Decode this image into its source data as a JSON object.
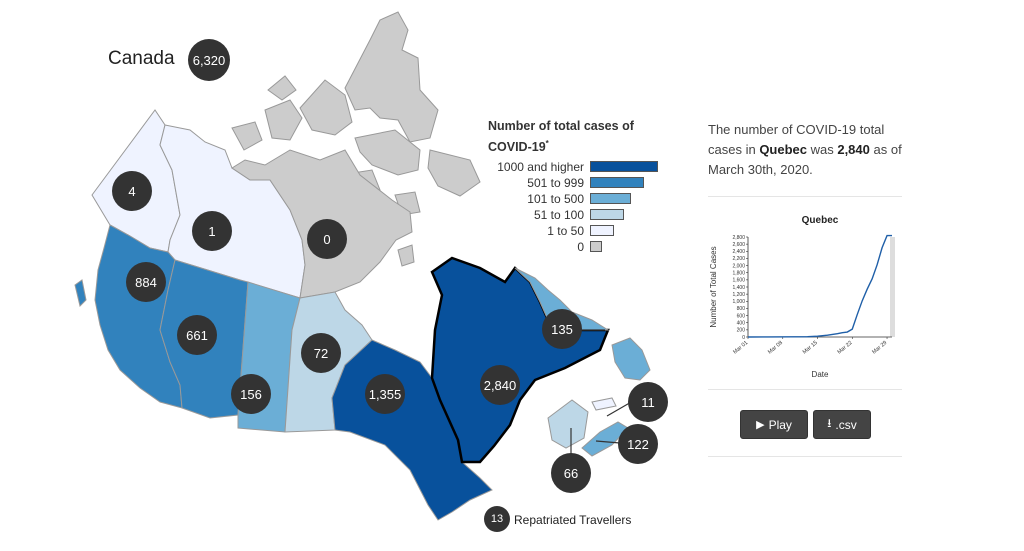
{
  "country": {
    "name": "Canada",
    "total": "6,320"
  },
  "colors": {
    "c1000": "#08519c",
    "c501": "#3182bd",
    "c101": "#6baed6",
    "c51": "#bdd7e7",
    "c1": "#eff3ff",
    "c0": "#cccccc"
  },
  "legend": {
    "title": "Number of total cases of COVID-19",
    "footnote": "*",
    "items": [
      {
        "label": "1000 and higher",
        "color": "#08519c",
        "fill": 1.0
      },
      {
        "label": "501 to 999",
        "color": "#3182bd",
        "fill": 0.8
      },
      {
        "label": "101 to 500",
        "color": "#6baed6",
        "fill": 0.6
      },
      {
        "label": "51 to 100",
        "color": "#bdd7e7",
        "fill": 0.5
      },
      {
        "label": "1 to 50",
        "color": "#eff3ff",
        "fill": 0.35
      },
      {
        "label": "0",
        "color": "#cccccc",
        "fill": 0.18
      }
    ]
  },
  "regions": {
    "yukon": "4",
    "nwt": "1",
    "nunavut": "0",
    "bc": "884",
    "alberta": "661",
    "saskatchewan": "156",
    "manitoba": "72",
    "ontario": "1,355",
    "quebec": "2,840",
    "newfoundland": "135",
    "pei": "11",
    "nova_scotia": "122",
    "new_brunswick": "66",
    "repatriated": "13"
  },
  "repatriated_label": "Repatriated Travellers",
  "description": {
    "pre": "The number of COVID-19 total cases in ",
    "province": "Quebec",
    "mid": " was ",
    "count": "2,840",
    "post": " as of March 30th, 2020."
  },
  "chart_data": {
    "type": "line",
    "title": "Quebec",
    "xlabel": "Date",
    "ylabel": "Number of Total Cases",
    "x_ticks": [
      "Mar 01",
      "Mar 08",
      "Mar 15",
      "Mar 22",
      "Mar 29"
    ],
    "y_ticks": [
      "0",
      "200",
      "400",
      "600",
      "800",
      "1,000",
      "1,200",
      "1,400",
      "1,600",
      "1,800",
      "2,000",
      "2,200",
      "2,400",
      "2,600",
      "2,800"
    ],
    "ylim": [
      0,
      2800
    ],
    "x": [
      "Mar 01",
      "Mar 05",
      "Mar 10",
      "Mar 13",
      "Mar 15",
      "Mar 17",
      "Mar 19",
      "Mar 20",
      "Mar 21",
      "Mar 22",
      "Mar 23",
      "Mar 24",
      "Mar 25",
      "Mar 26",
      "Mar 27",
      "Mar 28",
      "Mar 29",
      "Mar 30"
    ],
    "values": [
      0,
      1,
      4,
      9,
      24,
      50,
      94,
      121,
      139,
      221,
      628,
      1013,
      1339,
      1629,
      2021,
      2498,
      2840,
      2840
    ],
    "highlight": "Mar 30"
  },
  "buttons": {
    "play": "Play",
    "csv": ".csv"
  }
}
